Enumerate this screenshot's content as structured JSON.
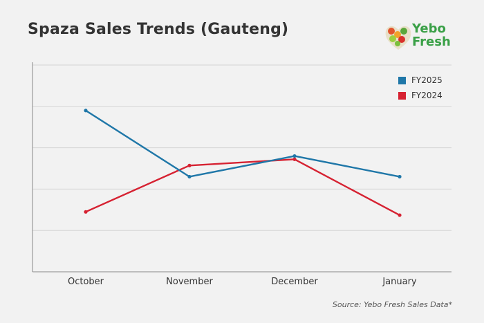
{
  "title": "Spaza Sales Trends (Gauteng)",
  "logo": {
    "line1": "Yebo",
    "line2": "Fresh"
  },
  "source": "Source: Yebo Fresh Sales Data*",
  "colors": {
    "FY2025": "#1f77a8",
    "FY2024": "#d62232",
    "grid": "#d4d4d4",
    "axis": "#888888"
  },
  "chart_data": {
    "type": "line",
    "categories": [
      "October",
      "November",
      "December",
      "January"
    ],
    "series": [
      {
        "name": "FY2025",
        "values": [
          3.9,
          2.3,
          2.8,
          2.3
        ]
      },
      {
        "name": "FY2024",
        "values": [
          1.45,
          2.57,
          2.72,
          1.37
        ]
      }
    ],
    "ylim": [
      0,
      5
    ],
    "grid": true,
    "legend": "top-right"
  }
}
